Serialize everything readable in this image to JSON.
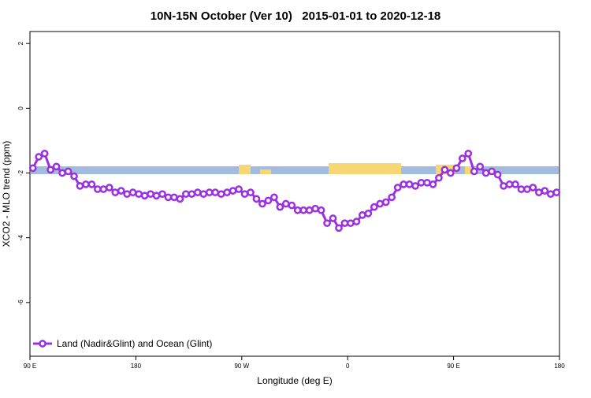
{
  "chart_data": {
    "type": "line",
    "title": "10N-15N October (Ver 10)   2015-01-01 to 2020-12-18",
    "x_label": "Longitude (deg E)",
    "y_label": "XCO2 - MLO trend (ppm)",
    "xlim": [
      90,
      540
    ],
    "ylim": [
      -7.66,
      2.37
    ],
    "xticks": [
      {
        "value": 90,
        "label": "90 E"
      },
      180,
      {
        "value": 270,
        "label": "90 W"
      },
      {
        "value": 360,
        "label": "0"
      },
      {
        "value": 450,
        "label": "90 E"
      },
      {
        "value": 540,
        "label": "180"
      }
    ],
    "yticks": [
      2,
      0,
      -2,
      -4,
      -6
    ],
    "legend": "bottom-left",
    "x": [
      92.5,
      97.5,
      102.5,
      107.5,
      112.5,
      117.5,
      122.5,
      127.5,
      132.5,
      137.5,
      142.5,
      147.5,
      152.5,
      157.5,
      162.5,
      167.5,
      172.5,
      177.5,
      182.5,
      187.5,
      192.5,
      197.5,
      202.5,
      207.5,
      212.5,
      217.5,
      222.5,
      227.5,
      232.5,
      237.5,
      242.5,
      247.5,
      252.5,
      257.5,
      262.5,
      267.5,
      272.5,
      277.5,
      282.5,
      287.5,
      292.5,
      297.5,
      302.5,
      307.5,
      312.5,
      317.5,
      322.5,
      327.5,
      332.5,
      337.5,
      342.5,
      347.5,
      352.5,
      357.5,
      362.5,
      367.5,
      372.5,
      377.5,
      382.5,
      387.5,
      392.5,
      397.5,
      402.5,
      407.5,
      412.5,
      417.5,
      422.5,
      427.5,
      432.5,
      437.5,
      442.5,
      447.5,
      452.5,
      457.5,
      462.5,
      467.5,
      472.5,
      477.5,
      482.5,
      487.5,
      492.5,
      497.5,
      502.5,
      507.5,
      512.5,
      517.5,
      522.5,
      527.5,
      532.5,
      537.5
    ],
    "series": [
      {
        "name": "Land (Nadir&Glint) and Ocean (Glint)",
        "color": "#9b30e0",
        "values": [
          -1.85,
          -1.5,
          -1.4,
          -1.9,
          -1.8,
          -2.0,
          -1.95,
          -2.1,
          -2.4,
          -2.35,
          -2.35,
          -2.5,
          -2.5,
          -2.45,
          -2.6,
          -2.55,
          -2.65,
          -2.6,
          -2.65,
          -2.7,
          -2.65,
          -2.7,
          -2.65,
          -2.75,
          -2.75,
          -2.8,
          -2.65,
          -2.65,
          -2.6,
          -2.65,
          -2.6,
          -2.6,
          -2.65,
          -2.6,
          -2.55,
          -2.5,
          -2.65,
          -2.6,
          -2.8,
          -2.95,
          -2.85,
          -2.75,
          -3.05,
          -2.95,
          -3.0,
          -3.15,
          -3.15,
          -3.15,
          -3.1,
          -3.15,
          -3.55,
          -3.4,
          -3.7,
          -3.55,
          -3.55,
          -3.5,
          -3.3,
          -3.25,
          -3.05,
          -2.95,
          -2.9,
          -2.75,
          -2.45,
          -2.35,
          -2.35,
          -2.4,
          -2.3,
          -2.3,
          -2.35,
          -2.15,
          -1.9,
          -2.0,
          -1.85,
          -1.55,
          -1.4,
          -1.95,
          -1.8,
          -2.0,
          -1.95,
          -2.05,
          -2.4,
          -2.35,
          -2.35,
          -2.5,
          -2.5,
          -2.45,
          -2.6,
          -2.55,
          -2.65,
          -2.6
        ]
      }
    ]
  }
}
